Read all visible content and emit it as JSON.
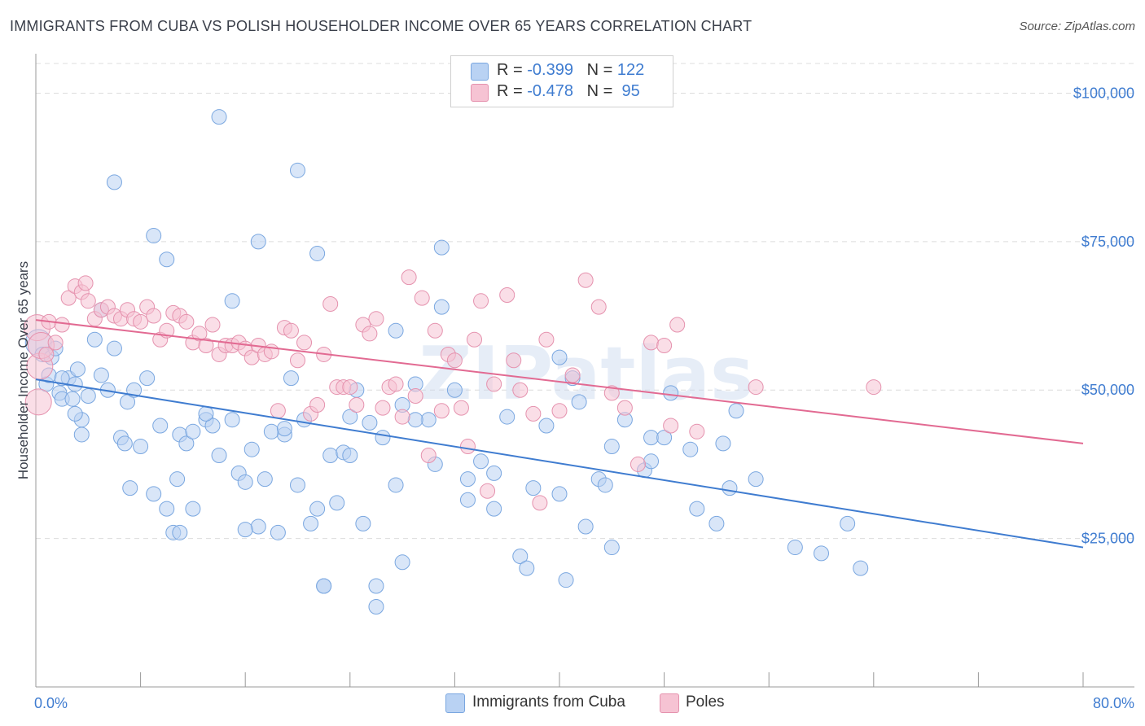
{
  "title": "IMMIGRANTS FROM CUBA VS POLISH HOUSEHOLDER INCOME OVER 65 YEARS CORRELATION CHART",
  "source": "Source: ZipAtlas.com",
  "watermark": "ZIPatlas",
  "legend_top": [
    {
      "r_label": "R = ",
      "r_value": "-0.399",
      "n_label": "N = ",
      "n_value": "122"
    },
    {
      "r_label": "R = ",
      "r_value": "-0.478",
      "n_label": "N = ",
      "n_value": " 95"
    }
  ],
  "colors": {
    "blue": "#3f7cd0",
    "blue_fill": "#b9d2f3",
    "pink": "#e26a92",
    "pink_fill": "#f6c3d3"
  },
  "chart_data": {
    "type": "scatter",
    "title": "IMMIGRANTS FROM CUBA VS POLISH HOUSEHOLDER INCOME OVER 65 YEARS CORRELATION CHART",
    "xlabel": "",
    "ylabel": "Householder Income Over 65 years",
    "xlim": [
      0,
      80
    ],
    "ylim": [
      0,
      105000
    ],
    "x_tick_labels": [
      "0.0%",
      "80.0%"
    ],
    "y_ticks": [
      25000,
      50000,
      75000,
      100000
    ],
    "y_tick_labels": [
      "$25,000",
      "$50,000",
      "$75,000",
      "$100,000"
    ],
    "grid": true,
    "legend_position": "top-center",
    "series": [
      {
        "name": "Immigrants from Cuba",
        "color": "#3f7cd0",
        "trend": {
          "x": [
            0,
            80
          ],
          "y": [
            51800,
            23500
          ]
        },
        "points": [
          [
            0.2,
            58000
          ],
          [
            0.5,
            56000
          ],
          [
            0.8,
            51000
          ],
          [
            1,
            52500
          ],
          [
            1.2,
            55500
          ],
          [
            1.5,
            57000
          ],
          [
            1.8,
            49500
          ],
          [
            2,
            48500
          ],
          [
            2.5,
            52000
          ],
          [
            2.8,
            48500
          ],
          [
            3,
            51000
          ],
          [
            3.2,
            53500
          ],
          [
            3.5,
            45000
          ],
          [
            3.5,
            42500
          ],
          [
            4,
            49000
          ],
          [
            4.5,
            58500
          ],
          [
            5,
            52500
          ],
          [
            5.5,
            50000
          ],
          [
            6,
            57000
          ],
          [
            6.5,
            42000
          ],
          [
            6.8,
            41000
          ],
          [
            7,
            48000
          ],
          [
            7.2,
            33500
          ],
          [
            8.5,
            52000
          ],
          [
            9,
            32500
          ],
          [
            9.5,
            44000
          ],
          [
            10,
            30000
          ],
          [
            10.5,
            26000
          ],
          [
            10.8,
            35000
          ],
          [
            11,
            42500
          ],
          [
            11.5,
            41000
          ],
          [
            12,
            30000
          ],
          [
            13,
            45000
          ],
          [
            13.5,
            44000
          ],
          [
            14,
            39000
          ],
          [
            15,
            45000
          ],
          [
            15.5,
            36000
          ],
          [
            16,
            34500
          ],
          [
            16.5,
            40000
          ],
          [
            17,
            27000
          ],
          [
            17.5,
            35000
          ],
          [
            18.5,
            26000
          ],
          [
            19,
            42500
          ],
          [
            19.5,
            52000
          ],
          [
            20,
            34000
          ],
          [
            20.5,
            45000
          ],
          [
            21,
            27500
          ],
          [
            21.5,
            30000
          ],
          [
            22,
            17000
          ],
          [
            22.5,
            39000
          ],
          [
            23,
            31000
          ],
          [
            23.5,
            39500
          ],
          [
            24,
            45500
          ],
          [
            24.5,
            50000
          ],
          [
            25,
            27500
          ],
          [
            26,
            13500
          ],
          [
            26.5,
            42000
          ],
          [
            27.5,
            34000
          ],
          [
            28,
            47500
          ],
          [
            29,
            51000
          ],
          [
            30,
            45000
          ],
          [
            30.5,
            37500
          ],
          [
            31,
            64000
          ],
          [
            32,
            50000
          ],
          [
            33,
            31500
          ],
          [
            34,
            38000
          ],
          [
            35,
            36000
          ],
          [
            36,
            45500
          ],
          [
            37,
            22000
          ],
          [
            37.5,
            20000
          ],
          [
            38,
            33500
          ],
          [
            39,
            44000
          ],
          [
            40,
            32500
          ],
          [
            40.5,
            18000
          ],
          [
            41,
            52000
          ],
          [
            42,
            27000
          ],
          [
            43,
            35000
          ],
          [
            43.5,
            34000
          ],
          [
            44,
            23500
          ],
          [
            45,
            45000
          ],
          [
            46.5,
            36500
          ],
          [
            47,
            42000
          ],
          [
            48,
            42000
          ],
          [
            48.5,
            49500
          ],
          [
            50,
            40000
          ],
          [
            50.5,
            30000
          ],
          [
            52,
            27500
          ],
          [
            53,
            33500
          ],
          [
            53.5,
            46500
          ],
          [
            55,
            35000
          ],
          [
            58,
            23500
          ],
          [
            60,
            22500
          ],
          [
            62,
            27500
          ],
          [
            63,
            20000
          ],
          [
            6,
            85000
          ],
          [
            9,
            76000
          ],
          [
            14,
            96000
          ],
          [
            17,
            75000
          ],
          [
            20,
            87000
          ],
          [
            21.5,
            73000
          ],
          [
            27.5,
            60000
          ],
          [
            31,
            74000
          ],
          [
            10,
            72000
          ],
          [
            15,
            65000
          ],
          [
            5,
            63500
          ],
          [
            18,
            43000
          ],
          [
            22,
            17000
          ],
          [
            12,
            43000
          ],
          [
            25.5,
            44500
          ],
          [
            40,
            55500
          ],
          [
            35,
            30000
          ],
          [
            19,
            43500
          ],
          [
            28,
            21000
          ],
          [
            16,
            26500
          ],
          [
            29,
            45000
          ],
          [
            24,
            39000
          ],
          [
            11,
            26000
          ],
          [
            8,
            40500
          ],
          [
            13,
            46000
          ],
          [
            26,
            17000
          ],
          [
            33,
            35000
          ],
          [
            44,
            40500
          ],
          [
            47,
            38000
          ],
          [
            7.5,
            50000
          ],
          [
            3,
            46000
          ],
          [
            41.5,
            48000
          ],
          [
            52.5,
            41000
          ],
          [
            2,
            52000
          ]
        ]
      },
      {
        "name": "Poles",
        "color": "#e26a92",
        "trend": {
          "x": [
            0,
            80
          ],
          "y": [
            61800,
            41000
          ]
        },
        "points": [
          [
            0.1,
            60500
          ],
          [
            0.2,
            48000
          ],
          [
            0.3,
            54000
          ],
          [
            0.4,
            57500
          ],
          [
            0.8,
            56000
          ],
          [
            1,
            61500
          ],
          [
            1.5,
            58000
          ],
          [
            2,
            61000
          ],
          [
            2.5,
            65500
          ],
          [
            3,
            67500
          ],
          [
            3.5,
            66500
          ],
          [
            3.8,
            68000
          ],
          [
            4,
            65000
          ],
          [
            4.5,
            62000
          ],
          [
            5,
            63500
          ],
          [
            5.5,
            64000
          ],
          [
            6,
            62500
          ],
          [
            6.5,
            62000
          ],
          [
            7,
            63500
          ],
          [
            7.5,
            62000
          ],
          [
            8,
            61500
          ],
          [
            8.5,
            64000
          ],
          [
            9,
            62500
          ],
          [
            9.5,
            58500
          ],
          [
            10,
            60000
          ],
          [
            10.5,
            63000
          ],
          [
            11,
            62500
          ],
          [
            11.5,
            61500
          ],
          [
            12,
            58000
          ],
          [
            12.5,
            59500
          ],
          [
            13,
            57500
          ],
          [
            13.5,
            61000
          ],
          [
            14,
            56000
          ],
          [
            14.5,
            57500
          ],
          [
            15,
            57500
          ],
          [
            15.5,
            58000
          ],
          [
            16,
            57000
          ],
          [
            16.5,
            55500
          ],
          [
            17,
            57500
          ],
          [
            17.5,
            56000
          ],
          [
            18,
            56500
          ],
          [
            18.5,
            46500
          ],
          [
            19,
            60500
          ],
          [
            19.5,
            60000
          ],
          [
            20,
            55000
          ],
          [
            20.5,
            58000
          ],
          [
            21,
            46000
          ],
          [
            21.5,
            47500
          ],
          [
            22,
            56000
          ],
          [
            22.5,
            64500
          ],
          [
            23,
            50500
          ],
          [
            23.5,
            50500
          ],
          [
            24,
            50500
          ],
          [
            24.5,
            47500
          ],
          [
            25,
            61000
          ],
          [
            25.5,
            59500
          ],
          [
            26,
            62000
          ],
          [
            26.5,
            47000
          ],
          [
            27,
            50500
          ],
          [
            27.5,
            51000
          ],
          [
            28,
            45500
          ],
          [
            28.5,
            69000
          ],
          [
            29,
            49000
          ],
          [
            29.5,
            65500
          ],
          [
            30,
            39000
          ],
          [
            30.5,
            60000
          ],
          [
            31,
            46500
          ],
          [
            31.5,
            56000
          ],
          [
            32,
            55000
          ],
          [
            32.5,
            47000
          ],
          [
            33,
            40500
          ],
          [
            33.5,
            58500
          ],
          [
            34,
            65000
          ],
          [
            34.5,
            33000
          ],
          [
            35,
            51000
          ],
          [
            36,
            66000
          ],
          [
            36.5,
            55000
          ],
          [
            37,
            50000
          ],
          [
            38,
            46000
          ],
          [
            38.5,
            31000
          ],
          [
            39,
            58500
          ],
          [
            40,
            46500
          ],
          [
            41,
            52500
          ],
          [
            42,
            68500
          ],
          [
            43,
            64000
          ],
          [
            44,
            49500
          ],
          [
            45,
            47000
          ],
          [
            46,
            37500
          ],
          [
            47,
            58000
          ],
          [
            48,
            57500
          ],
          [
            48.5,
            44000
          ],
          [
            49,
            61000
          ],
          [
            50.5,
            43000
          ],
          [
            55,
            50500
          ],
          [
            64,
            50500
          ]
        ]
      }
    ]
  },
  "bottom_legend": {
    "series1": "Immigrants from Cuba",
    "series2": "Poles"
  }
}
